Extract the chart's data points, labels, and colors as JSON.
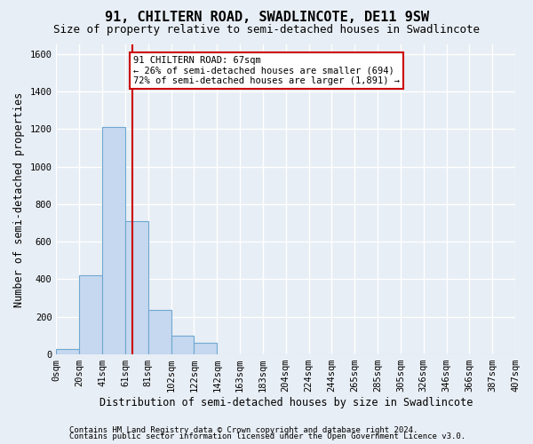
{
  "title": "91, CHILTERN ROAD, SWADLINCOTE, DE11 9SW",
  "subtitle": "Size of property relative to semi-detached houses in Swadlincote",
  "xlabel": "Distribution of semi-detached houses by size in Swadlincote",
  "ylabel": "Number of semi-detached properties",
  "footnote1": "Contains HM Land Registry data © Crown copyright and database right 2024.",
  "footnote2": "Contains public sector information licensed under the Open Government Licence v3.0.",
  "bin_labels": [
    "0sqm",
    "20sqm",
    "41sqm",
    "61sqm",
    "81sqm",
    "102sqm",
    "122sqm",
    "142sqm",
    "163sqm",
    "183sqm",
    "204sqm",
    "224sqm",
    "244sqm",
    "265sqm",
    "285sqm",
    "305sqm",
    "326sqm",
    "346sqm",
    "366sqm",
    "387sqm",
    "407sqm"
  ],
  "bar_heights": [
    30,
    420,
    1210,
    710,
    235,
    100,
    60,
    0,
    0,
    0,
    0,
    0,
    0,
    0,
    0,
    0,
    0,
    0,
    0,
    0
  ],
  "bar_color": "#c5d8ef",
  "bar_edge_color": "#6fa8d0",
  "property_bin": 3,
  "property_label": "91 CHILTERN ROAD: 67sqm",
  "vline_color": "#cc0000",
  "annotation_line1": "← 26% of semi-detached houses are smaller (694)",
  "annotation_line2": "72% of semi-detached houses are larger (1,891) →",
  "annotation_box_facecolor": "#ffffff",
  "annotation_border_color": "#cc0000",
  "ylim": [
    0,
    1650
  ],
  "yticks": [
    0,
    200,
    400,
    600,
    800,
    1000,
    1200,
    1400,
    1600
  ],
  "background_color": "#e8eef5",
  "grid_color": "#ffffff",
  "title_fontsize": 11,
  "subtitle_fontsize": 9,
  "axis_label_fontsize": 8.5,
  "tick_fontsize": 7.5,
  "footnote_fontsize": 6.5,
  "annotation_fontsize": 7.5
}
